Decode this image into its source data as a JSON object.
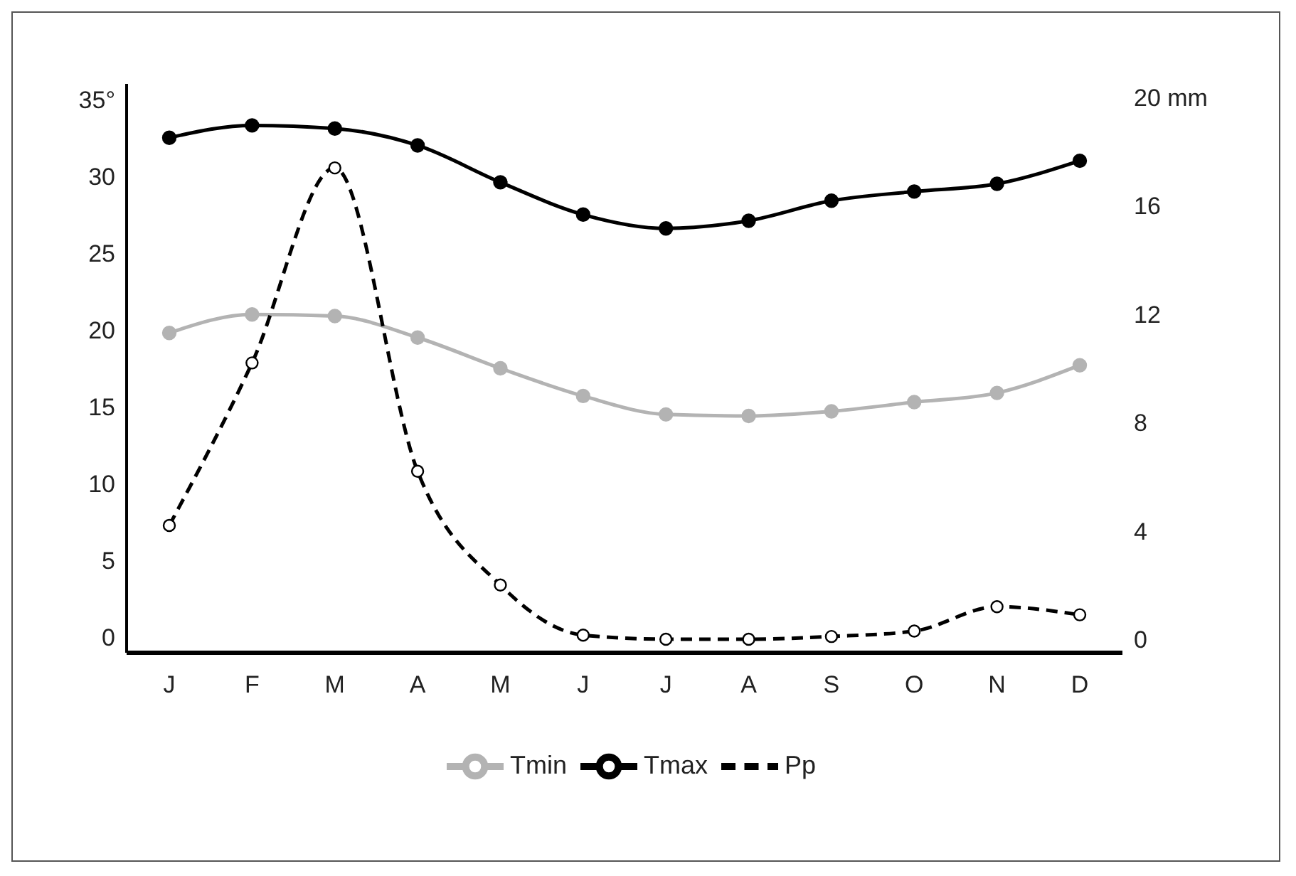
{
  "chart_data": {
    "type": "line",
    "categories": [
      "J",
      "F",
      "M",
      "A",
      "M",
      "J",
      "J",
      "A",
      "S",
      "O",
      "N",
      "D"
    ],
    "series": [
      {
        "name": "Tmin",
        "color": "#b3b3b3",
        "values": [
          19.8,
          21,
          20.9,
          19.5,
          17.5,
          15.7,
          14.5,
          14.4,
          14.7,
          15.3,
          15.9,
          17.7
        ]
      },
      {
        "name": "Tmax",
        "color": "#000000",
        "values": [
          32.5,
          33.3,
          33.1,
          32,
          29.6,
          27.5,
          26.6,
          27.1,
          28.4,
          29,
          29.5,
          31
        ]
      },
      {
        "name": "Pp",
        "color": "#000000",
        "axis": "y2",
        "line_style": "dashed",
        "values": [
          4.2,
          10.2,
          17.4,
          6.2,
          2,
          0.15,
          0,
          0,
          0.1,
          0.3,
          1.2,
          0.9
        ]
      }
    ],
    "ylim": [
      -1,
      36
    ],
    "yticks": [
      0,
      5,
      10,
      15,
      20,
      25,
      30,
      {
        "value": 35,
        "label": "35°"
      }
    ],
    "y2lim": [
      -0.5,
      20.5
    ],
    "y2ticks": [
      0,
      4,
      8,
      12,
      16,
      {
        "value": 20,
        "label": "20 mm"
      }
    ],
    "grid": false,
    "legend": "bottom",
    "marker": "circle",
    "line_style": "solid"
  }
}
